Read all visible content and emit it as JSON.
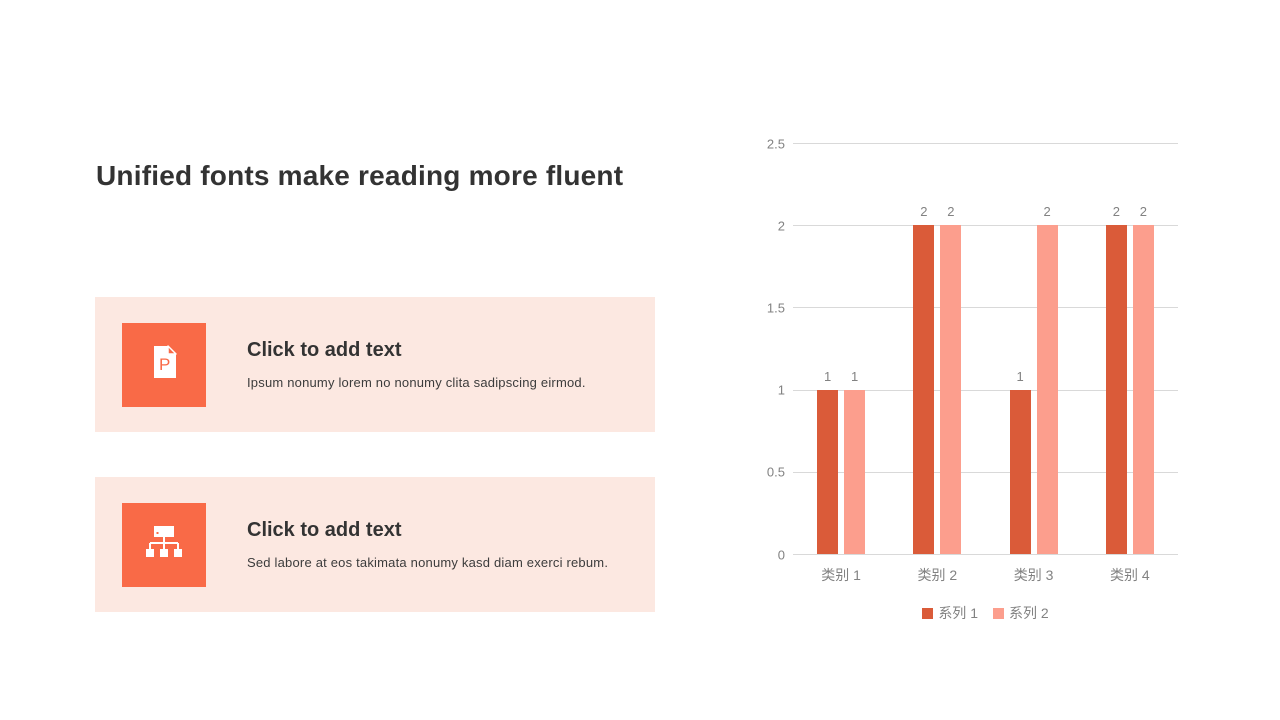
{
  "slide": {
    "title": "Unified fonts make reading more fluent",
    "cards": [
      {
        "icon": "document-p-icon",
        "heading": "Click to add text",
        "body": "Ipsum nonumy lorem no nonumy clita sadipscing eirmod."
      },
      {
        "icon": "org-chart-icon",
        "heading": "Click to add text",
        "body": "Sed labore at eos takimata nonumy kasd diam exerci rebum."
      }
    ]
  },
  "colors": {
    "title_text": "#333333",
    "card_bg": "#fce8e1",
    "icon_bg": "#f96a47",
    "series1": "#da5b39",
    "series2": "#fc9e8d",
    "axis_text": "#828282",
    "gridline": "#d9d9d9"
  },
  "chart_data": {
    "type": "bar",
    "title": "",
    "xlabel": "",
    "ylabel": "",
    "categories": [
      "类别 1",
      "类别 2",
      "类别 3",
      "类别 4"
    ],
    "series": [
      {
        "name": "系列 1",
        "color": "#da5b39",
        "values": [
          1,
          2,
          1,
          2
        ]
      },
      {
        "name": "系列 2",
        "color": "#fc9e8d",
        "values": [
          1,
          2,
          2,
          2
        ]
      }
    ],
    "ylim": [
      0,
      2.5
    ],
    "yticks": [
      0,
      0.5,
      1,
      1.5,
      2,
      2.5
    ],
    "grid": true,
    "data_labels": true,
    "legend_position": "bottom"
  }
}
